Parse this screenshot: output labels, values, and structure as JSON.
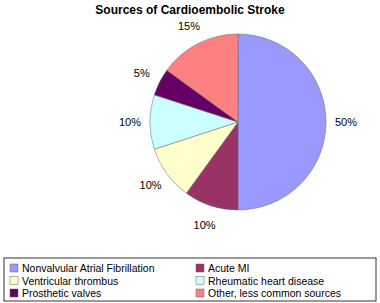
{
  "chart_data": {
    "type": "pie",
    "title": "Sources of Cardioembolic Stroke",
    "categories": [
      "Nonvalvular Atrial Fibrillation",
      "Acute MI",
      "Ventricular thrombus",
      "Rheumatic heart disease",
      "Prosthetic valves",
      "Other, less common sources"
    ],
    "values": [
      50,
      10,
      10,
      10,
      5,
      15
    ],
    "value_labels": [
      "50%",
      "10%",
      "10%",
      "10%",
      "5%",
      "15%"
    ],
    "colors": [
      "#9999ff",
      "#993366",
      "#ffffcc",
      "#ccffff",
      "#660066",
      "#ff8080"
    ],
    "data_labels": true,
    "legend": "bottom"
  }
}
